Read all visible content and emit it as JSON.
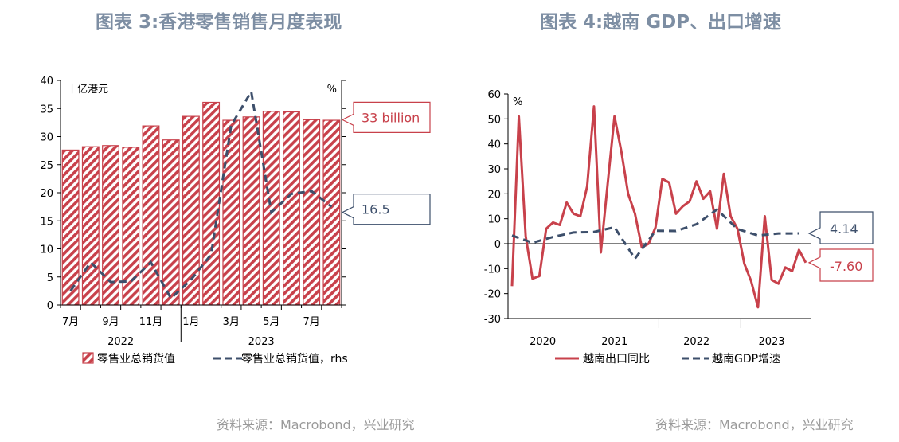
{
  "left": {
    "title": "图表 3:香港零售销售月度表现",
    "source": "资料来源：Macrobond，兴业研究",
    "chart_data": {
      "type": "bar",
      "title": "图表 3:香港零售销售月度表现",
      "left_unit": "十亿港元",
      "right_unit": "%",
      "ylim": [
        0,
        40
      ],
      "yticks": [
        0,
        5,
        10,
        15,
        20,
        25,
        30,
        35,
        40
      ],
      "x_tick_labels": [
        "7月",
        "9月",
        "11月",
        "1月",
        "3月",
        "5月",
        "7月"
      ],
      "year_labels": [
        "2022",
        "2023"
      ],
      "bar_series": {
        "name": "零售业总销货值",
        "months": [
          "2022-07",
          "2022-08",
          "2022-09",
          "2022-10",
          "2022-11",
          "2022-12",
          "2023-01",
          "2023-02",
          "2023-03",
          "2023-04",
          "2023-05",
          "2023-06",
          "2023-07",
          "2023-08"
        ],
        "values": [
          27.6,
          28.2,
          28.4,
          28.1,
          31.9,
          29.4,
          33.6,
          36.1,
          32.9,
          33.5,
          34.5,
          34.4,
          33.0,
          32.9
        ]
      },
      "line_series": {
        "name": "零售业总销货值，rhs",
        "values": [
          2.5,
          7.6,
          4.1,
          4.2,
          7.6,
          1.2,
          4.5,
          9.0,
          32.0,
          38.0,
          16.5,
          19.8,
          20.3,
          17.5
        ]
      },
      "callouts": [
        {
          "text": "33 billion",
          "value": 33,
          "color": "#c8414b"
        },
        {
          "text": "16.5",
          "value": 16.5,
          "color": "#3d4f6b"
        }
      ],
      "legend": [
        "零售业总销货值",
        "零售业总销货值，rhs"
      ]
    }
  },
  "right": {
    "title": "图表 4:越南 GDP、出口增速",
    "source": "资料来源：Macrobond，兴业研究",
    "chart_data": {
      "type": "line",
      "title": "图表 4:越南 GDP、出口增速",
      "unit": "%",
      "ylim": [
        -30,
        60
      ],
      "yticks": [
        -30,
        -20,
        -10,
        0,
        10,
        20,
        30,
        40,
        50,
        60
      ],
      "year_labels": [
        "2020",
        "2021",
        "2022",
        "2023"
      ],
      "series": [
        {
          "name": "越南出口同比",
          "color": "#c8414b",
          "x_month_index": [
            0,
            1,
            2,
            3,
            4,
            5,
            6,
            7,
            8,
            9,
            10,
            11,
            12,
            13,
            14,
            15,
            16,
            17,
            18,
            19,
            20,
            21,
            22,
            23,
            24,
            25,
            26,
            27,
            28,
            29,
            30,
            31,
            32,
            33,
            34,
            35,
            36,
            37,
            38,
            39,
            40,
            41,
            42,
            43
          ],
          "values": [
            -17,
            51,
            3,
            -14,
            -13,
            6,
            8.5,
            7.5,
            16.5,
            12,
            11,
            23,
            55,
            -3.5,
            24,
            51,
            37,
            20,
            12,
            -1.5,
            0,
            6.5,
            26,
            24.5,
            12,
            15,
            17,
            25,
            18,
            21,
            6,
            28,
            11,
            6,
            -8,
            -15,
            -25.5,
            11,
            -14.5,
            -16,
            -9.5,
            -11,
            -2.5,
            -7.6
          ]
        },
        {
          "name": "越南GDP增速",
          "color": "#3d4f6b",
          "x_quarter_month_index": [
            0,
            3,
            6,
            9,
            12,
            15,
            18,
            21,
            24,
            27,
            30,
            33,
            36,
            39,
            42
          ],
          "values": [
            3.3,
            0.4,
            2.7,
            4.5,
            4.7,
            6.6,
            -6.0,
            5.2,
            5.1,
            7.8,
            13.7,
            5.9,
            3.3,
            4.1,
            4.14
          ]
        }
      ],
      "callouts": [
        {
          "text": "4.14",
          "value": 4.14,
          "color": "#3d4f6b"
        },
        {
          "text": "-7.60",
          "value": -7.6,
          "color": "#c8414b"
        }
      ],
      "legend": [
        "越南出口同比",
        "越南GDP增速"
      ]
    }
  }
}
